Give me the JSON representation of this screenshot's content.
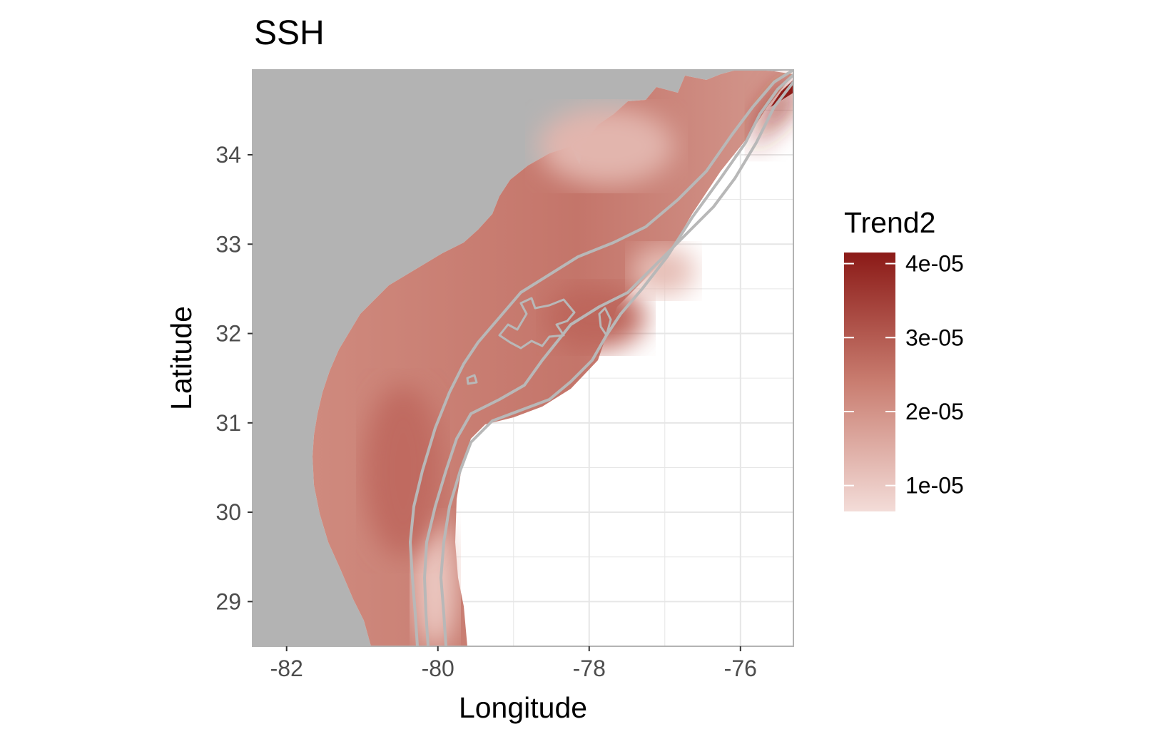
{
  "chart_data": {
    "type": "heatmap",
    "title": "SSH",
    "xlabel": "Longitude",
    "ylabel": "Latitude",
    "xlim": [
      -82.45,
      -75.3
    ],
    "ylim": [
      28.5,
      34.95
    ],
    "xticks": [
      -82,
      -80,
      -78,
      -76
    ],
    "xtick_labels": [
      "-82",
      "-80",
      "-78",
      "-76"
    ],
    "yticks": [
      29,
      30,
      31,
      32,
      33,
      34
    ],
    "ytick_labels": [
      "29",
      "30",
      "31",
      "32",
      "33",
      "34"
    ],
    "grid": true,
    "land_color": "#b3b3b3",
    "contour_color": "#b8b8b8",
    "legend": {
      "title": "Trend2",
      "position": "right",
      "breaks": [
        1e-05,
        2e-05,
        3e-05,
        4e-05
      ],
      "labels": [
        "1e-05",
        "2e-05",
        "3e-05",
        "4e-05"
      ],
      "range": [
        6.5e-06,
        4.15e-05
      ],
      "color_low": "#f3dcd8",
      "color_mid": "#c97d70",
      "color_high": "#8b1a17"
    },
    "field": {
      "description_points": [
        {
          "lon": -81.2,
          "lat": 31.0,
          "value": 2.1e-05
        },
        {
          "lon": -80.6,
          "lat": 30.4,
          "value": 2.4e-05
        },
        {
          "lon": -80.0,
          "lat": 28.9,
          "value": 1.1e-05
        },
        {
          "lon": -78.3,
          "lat": 32.2,
          "value": 2.7e-05
        },
        {
          "lon": -78.0,
          "lat": 34.2,
          "value": 1e-05
        },
        {
          "lon": -75.6,
          "lat": 34.7,
          "value": 4e-05
        },
        {
          "lon": -77.3,
          "lat": 32.7,
          "value": 1.2e-05
        }
      ]
    }
  }
}
